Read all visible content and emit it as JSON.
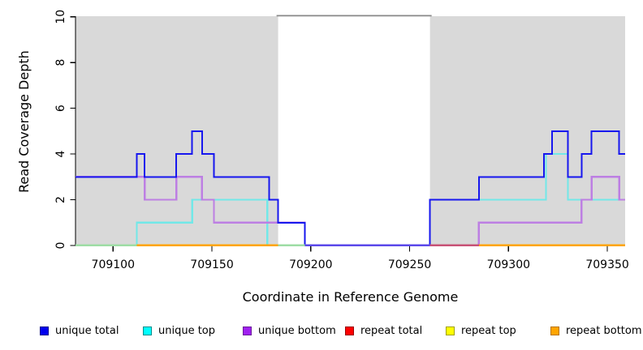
{
  "figure": {
    "xlabel": "Coordinate in Reference Genome",
    "ylabel": "Read Coverage Depth"
  },
  "chart_data": {
    "type": "line",
    "step": true,
    "title": "",
    "xlabel": "Coordinate in Reference Genome",
    "ylabel": "Read Coverage Depth",
    "xlim": [
      709081,
      709359
    ],
    "ylim": [
      0,
      10
    ],
    "x_ticks": [
      "709100",
      "709150",
      "709200",
      "709250",
      "709300",
      "709350"
    ],
    "x_tick_values": [
      709100,
      709150,
      709200,
      709250,
      709300,
      709350
    ],
    "y_ticks": [
      "0",
      "2",
      "4",
      "6",
      "8",
      "10"
    ],
    "y_tick_values": [
      0,
      2,
      4,
      6,
      8,
      10
    ],
    "grid": false,
    "legend_position": "bottom",
    "region_color": "#d9d9d9",
    "gap_top_border_color": "#888888",
    "shaded_regions": [
      {
        "start": 709081,
        "end": 709183.5
      },
      {
        "start": 709260.3,
        "end": 709359
      }
    ],
    "series": [
      {
        "name": "repeat total",
        "color": "#ff0000",
        "width": 2,
        "segments": [
          [
            [
              709081,
              0
            ],
            [
              709183.5,
              0
            ]
          ],
          [
            [
              709260.3,
              0
            ],
            [
              709359,
              0
            ]
          ]
        ]
      },
      {
        "name": "repeat top",
        "color": "#ffff00",
        "width": 2,
        "segments": [
          [
            [
              709081,
              0
            ],
            [
              709183.5,
              0
            ]
          ],
          [
            [
              709260.3,
              0
            ],
            [
              709359,
              0
            ]
          ]
        ]
      },
      {
        "name": "repeat bottom",
        "color": "#ffa500",
        "width": 2,
        "segments": [
          [
            [
              709081,
              0
            ],
            [
              709183.5,
              0
            ]
          ],
          [
            [
              709260.3,
              0
            ],
            [
              709359,
              0
            ]
          ]
        ]
      },
      {
        "name": "unique top",
        "color": "#72e8e8",
        "width": 2.2,
        "segments": [
          [
            [
              709081,
              0
            ],
            [
              709112,
              1
            ],
            [
              709140,
              2
            ],
            [
              709178,
              0
            ],
            [
              709260.3,
              2
            ],
            [
              709319,
              4
            ],
            [
              709330,
              2
            ],
            [
              709359,
              2
            ]
          ]
        ]
      },
      {
        "name": "unique bottom",
        "color": "#bd7fe3",
        "width": 2.4,
        "segments": [
          [
            [
              709081,
              3
            ],
            [
              709116,
              2
            ],
            [
              709132,
              3
            ],
            [
              709145,
              2
            ],
            [
              709151,
              1
            ],
            [
              709197,
              0
            ],
            [
              709285,
              1
            ],
            [
              709337,
              2
            ],
            [
              709342,
              3
            ],
            [
              709356,
              2
            ],
            [
              709359,
              2
            ]
          ]
        ]
      },
      {
        "name": "unique total",
        "color": "#1717ee",
        "width": 2,
        "segments": [
          [
            [
              709081,
              3
            ],
            [
              709112,
              4
            ],
            [
              709116,
              3
            ],
            [
              709132,
              4
            ],
            [
              709140,
              5
            ],
            [
              709145,
              4
            ],
            [
              709151,
              3
            ],
            [
              709179,
              2
            ],
            [
              709183.5,
              1
            ],
            [
              709197,
              0
            ],
            [
              709260.3,
              2
            ],
            [
              709285,
              3
            ],
            [
              709318,
              4
            ],
            [
              709322,
              5
            ],
            [
              709330,
              3
            ],
            [
              709337,
              4
            ],
            [
              709342,
              5
            ],
            [
              709356,
              4
            ],
            [
              709359,
              4
            ]
          ]
        ]
      }
    ],
    "baseline_segments": [
      {
        "from": 709081,
        "to": 709112,
        "color": "#9edda5"
      },
      {
        "from": 709112,
        "to": 709183.5,
        "color": "#ffa500"
      },
      {
        "from": 709183.5,
        "to": 709197,
        "color": "#9edda5"
      },
      {
        "from": 709197,
        "to": 709260.3,
        "color": "#5b49ea"
      },
      {
        "from": 709260.3,
        "to": 709285,
        "color": "#c85276"
      },
      {
        "from": 709285,
        "to": 709359,
        "color": "#ffa500"
      }
    ]
  },
  "legend": {
    "items": [
      {
        "label": "unique total",
        "fill": "#0000ee",
        "border": "#000090"
      },
      {
        "label": "unique top",
        "fill": "#00ffff",
        "border": "#008b8b"
      },
      {
        "label": "unique bottom",
        "fill": "#a020f0",
        "border": "#6a1b9a"
      },
      {
        "label": "repeat total",
        "fill": "#ff0000",
        "border": "#990000"
      },
      {
        "label": "repeat top",
        "fill": "#ffff00",
        "border": "#a0a000"
      },
      {
        "label": "repeat bottom",
        "fill": "#ffa500",
        "border": "#b87400"
      }
    ]
  }
}
